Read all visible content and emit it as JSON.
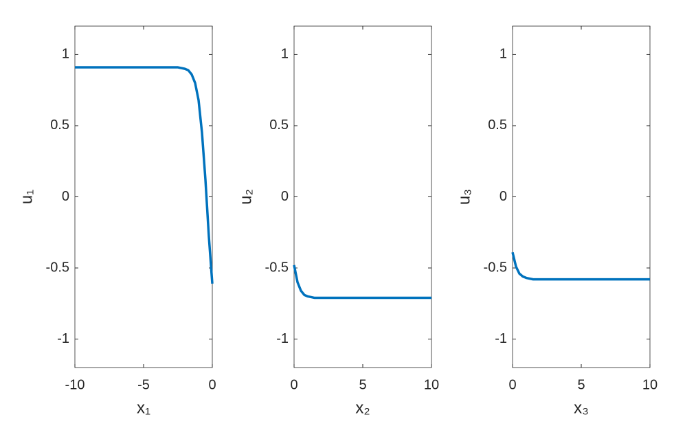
{
  "chart_data": [
    {
      "type": "line",
      "xlabel": "x₁",
      "ylabel": "u₁",
      "x": [
        -10,
        -8,
        -6,
        -4,
        -3,
        -2.5,
        -2,
        -1.75,
        -1.5,
        -1.25,
        -1,
        -0.75,
        -0.5,
        -0.25,
        0
      ],
      "series": [
        {
          "color": "#0072bd",
          "values": [
            0.91,
            0.91,
            0.91,
            0.91,
            0.91,
            0.91,
            0.9,
            0.89,
            0.86,
            0.8,
            0.68,
            0.45,
            0.12,
            -0.28,
            -0.61
          ]
        }
      ],
      "xlim": [
        -10,
        0
      ],
      "xticks": [
        -10,
        -5,
        0
      ],
      "ylim": [
        -1.2,
        1.2
      ],
      "yticks": [
        -1,
        -0.5,
        0,
        0.5,
        1
      ]
    },
    {
      "type": "line",
      "xlabel": "x₂",
      "ylabel": "u₂",
      "x": [
        0,
        0.25,
        0.5,
        0.75,
        1,
        1.5,
        2,
        3,
        5,
        10
      ],
      "series": [
        {
          "color": "#0072bd",
          "values": [
            -0.48,
            -0.6,
            -0.66,
            -0.69,
            -0.7,
            -0.71,
            -0.71,
            -0.71,
            -0.71,
            -0.71
          ]
        }
      ],
      "xlim": [
        0,
        10
      ],
      "xticks": [
        0,
        5,
        10
      ],
      "ylim": [
        -1.2,
        1.2
      ],
      "yticks": [
        -1,
        -0.5,
        0,
        0.5,
        1
      ]
    },
    {
      "type": "line",
      "xlabel": "x₃",
      "ylabel": "u₃",
      "x": [
        0,
        0.25,
        0.5,
        0.75,
        1,
        1.5,
        2,
        3,
        5,
        10
      ],
      "series": [
        {
          "color": "#0072bd",
          "values": [
            -0.39,
            -0.49,
            -0.54,
            -0.56,
            -0.57,
            -0.58,
            -0.58,
            -0.58,
            -0.58,
            -0.58
          ]
        }
      ],
      "xlim": [
        0,
        10
      ],
      "xticks": [
        0,
        5,
        10
      ],
      "ylim": [
        -1.2,
        1.2
      ],
      "yticks": [
        -1,
        -0.5,
        0,
        0.5,
        1
      ]
    }
  ]
}
